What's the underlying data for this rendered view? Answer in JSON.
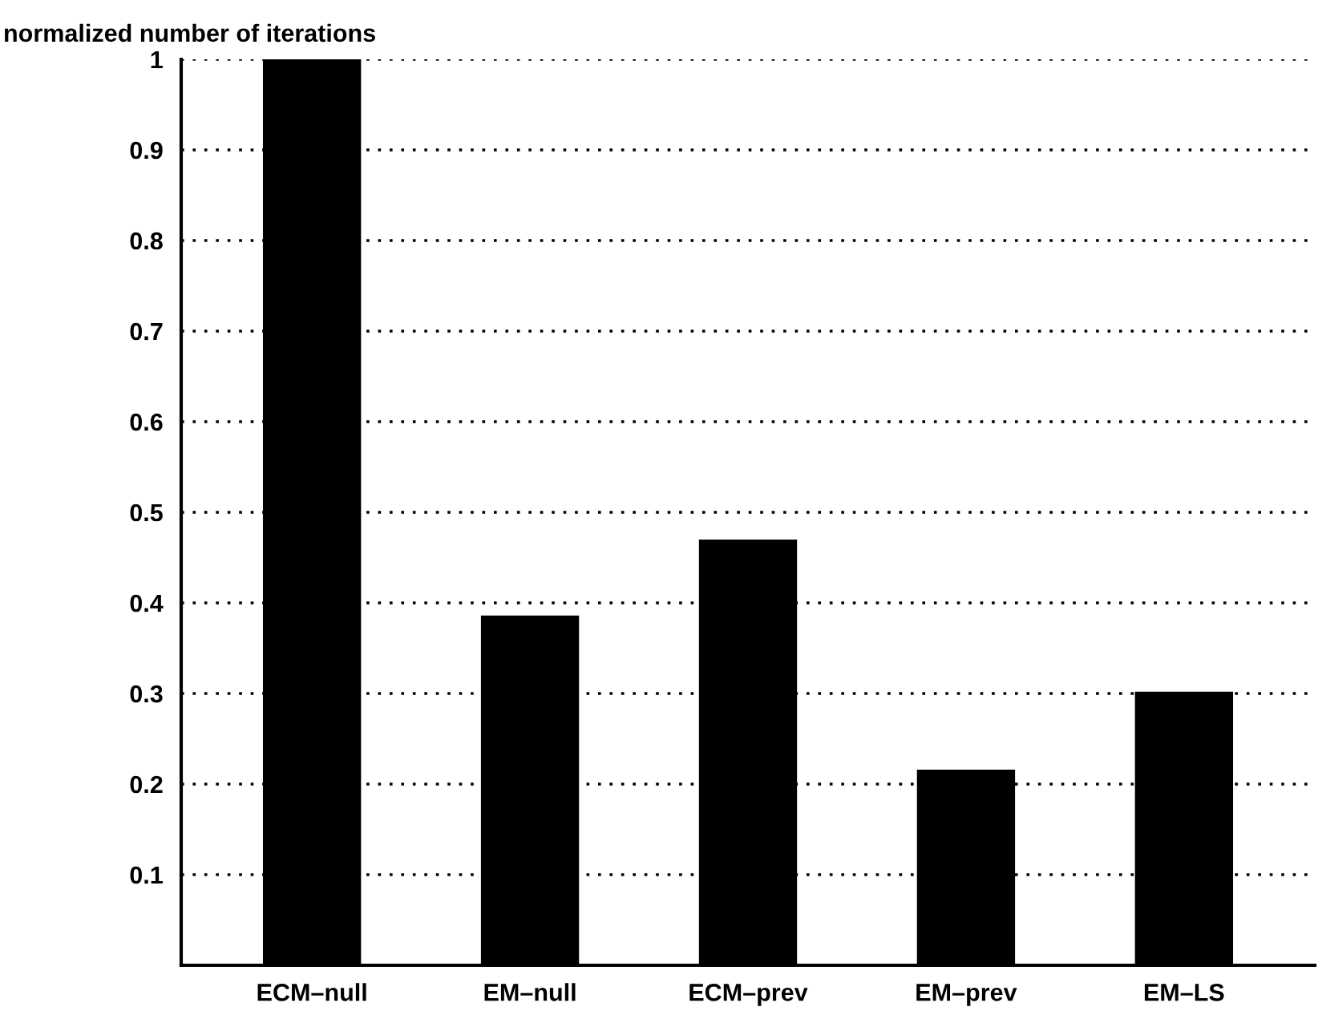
{
  "chart_data": {
    "type": "bar",
    "ylabel": "normalized number of iterations",
    "categories": [
      "ECM–null",
      "EM–null",
      "ECM–prev",
      "EM–prev",
      "EM–LS"
    ],
    "values": [
      1.0,
      0.386,
      0.47,
      0.216,
      0.302
    ],
    "color": "#000000",
    "ylim": [
      0,
      1
    ],
    "yticks": [
      0.1,
      0.2,
      0.3,
      0.4,
      0.5,
      0.6,
      0.7,
      0.8,
      0.9,
      1
    ],
    "grid": "y"
  }
}
